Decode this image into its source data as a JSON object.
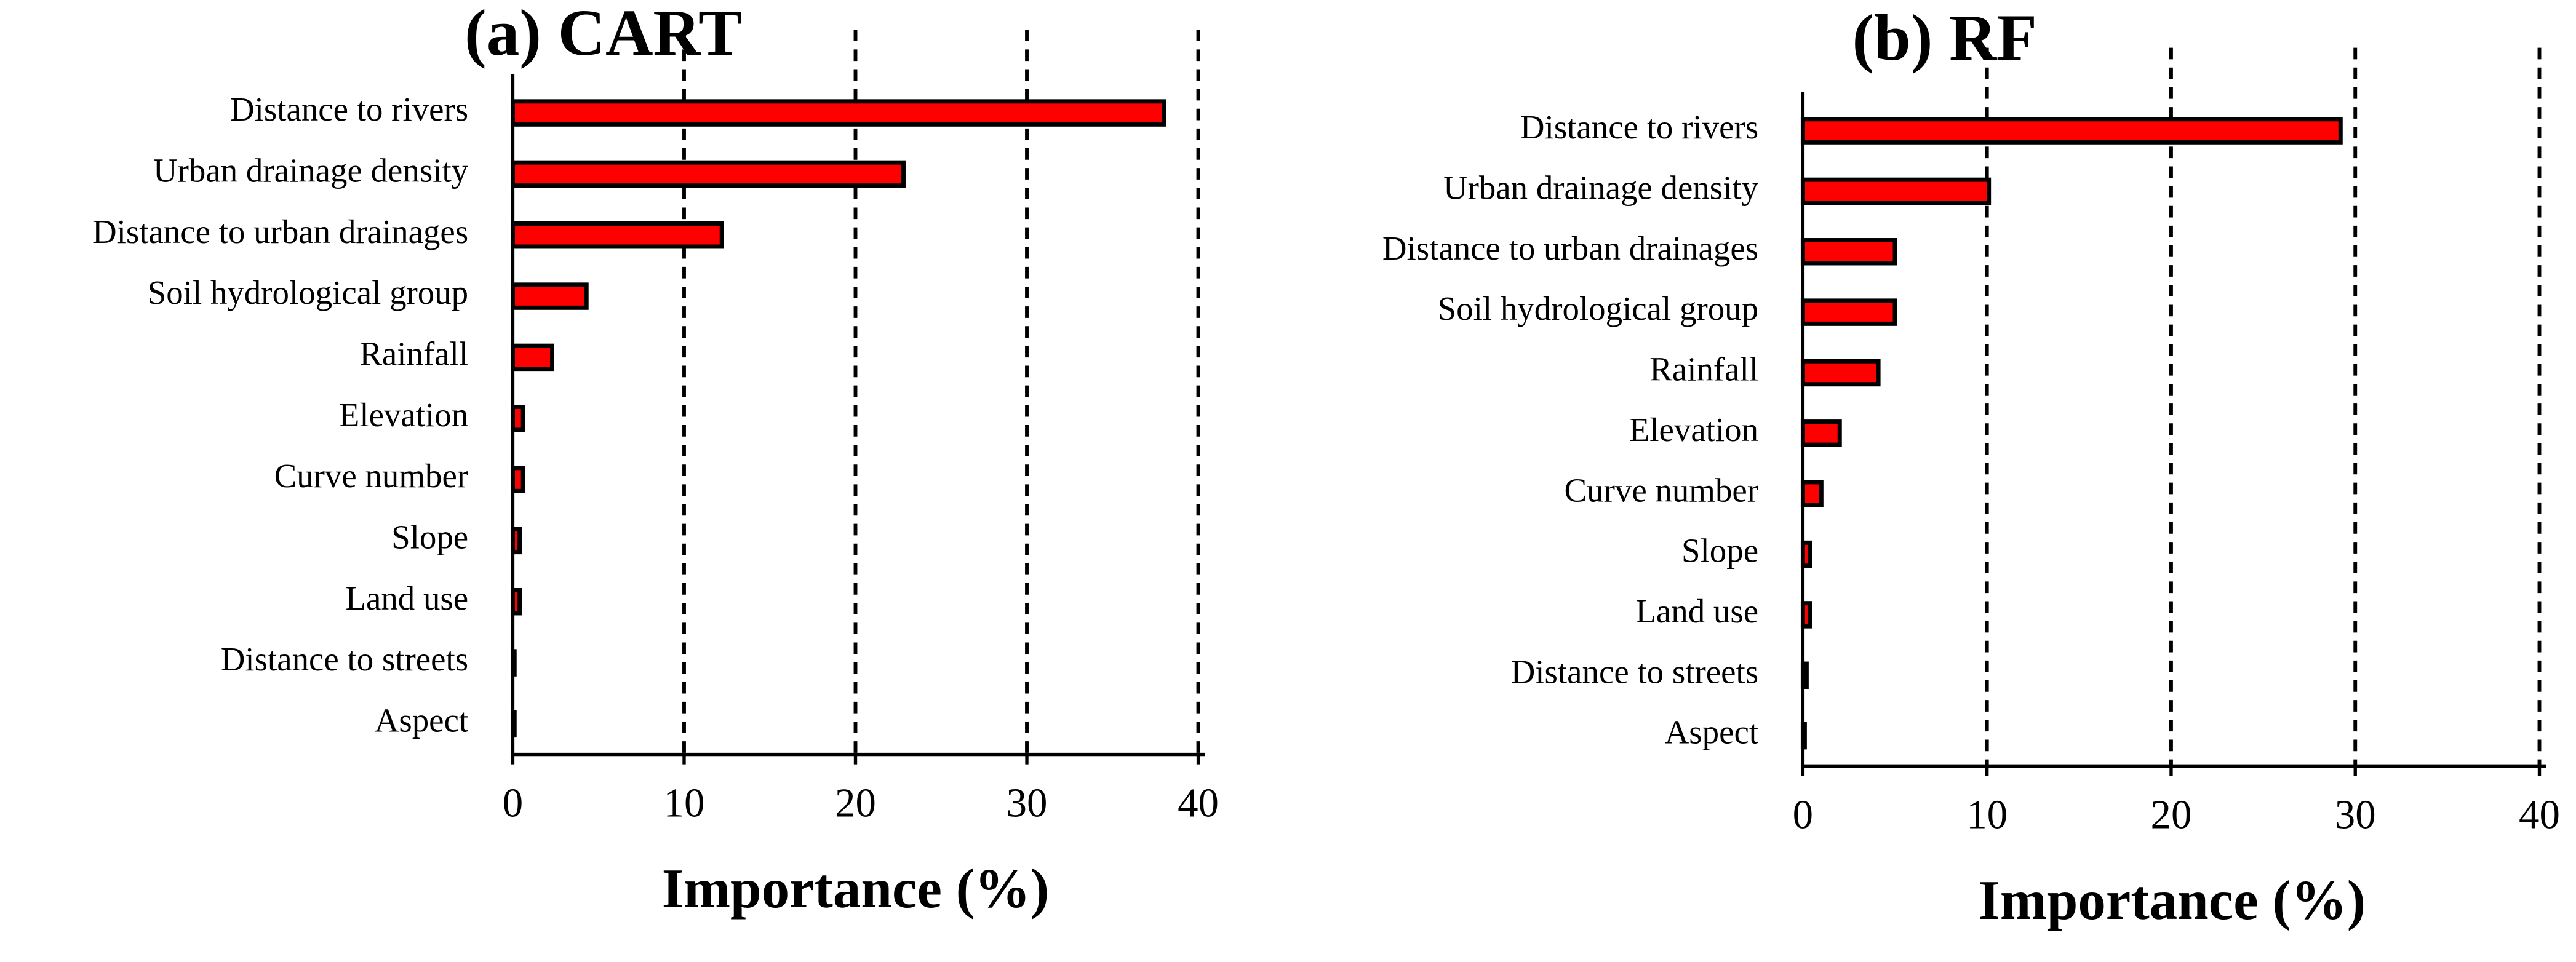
{
  "chart_data": [
    {
      "type": "bar",
      "orientation": "horizontal",
      "title": "(a) CART",
      "xlabel": "Importance (%)",
      "categories": [
        "Distance to rivers",
        "Urban drainage density",
        "Distance to urban drainages",
        "Soil hydrological group",
        "Rainfall",
        "Elevation",
        "Curve number",
        "Slope",
        "Land use",
        "Distance to streets",
        "Aspect"
      ],
      "values": [
        38,
        22.8,
        12.2,
        4.3,
        2.3,
        0.6,
        0.6,
        0.4,
        0.4,
        0.1,
        0.1
      ],
      "color": "#ff0000",
      "xlim": [
        0,
        40
      ],
      "xticks": [
        0,
        10,
        20,
        30,
        40
      ],
      "grid": true
    },
    {
      "type": "bar",
      "orientation": "horizontal",
      "title": "(b) RF",
      "xlabel": "Importance (%)",
      "categories": [
        "Distance to rivers",
        "Urban drainage density",
        "Distance to urban drainages",
        "Soil hydrological group",
        "Rainfall",
        "Elevation",
        "Curve number",
        "Slope",
        "Land use",
        "Distance to streets",
        "Aspect"
      ],
      "values": [
        29.2,
        10.1,
        5.0,
        5.0,
        4.1,
        2.0,
        1.0,
        0.4,
        0.4,
        0.2,
        0.1
      ],
      "color": "#ff0000",
      "xlim": [
        0,
        40
      ],
      "xticks": [
        0,
        10,
        20,
        30,
        40
      ],
      "grid": true
    }
  ]
}
